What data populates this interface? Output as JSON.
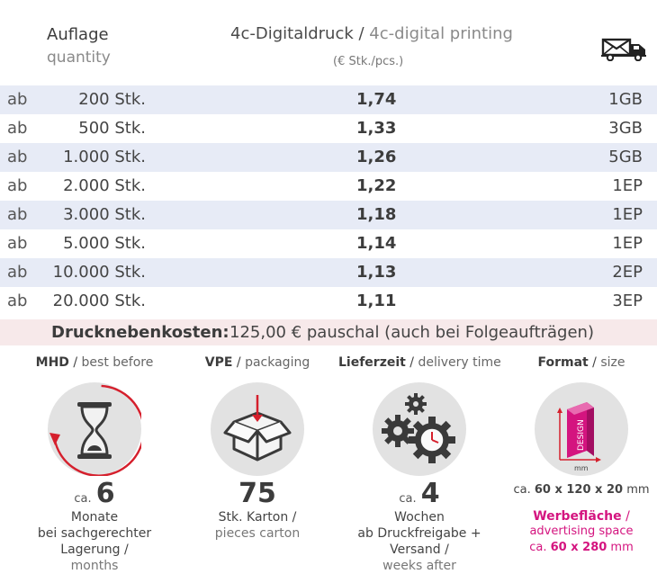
{
  "header": {
    "quantity_de": "Auflage",
    "quantity_en": "quantity",
    "printing_de": "4c-Digitaldruck",
    "printing_sep": " / ",
    "printing_en": "4c-digital printing",
    "unit": "(€ Stk./pcs.)",
    "shipping_icon": "truck-mail-icon"
  },
  "rows": [
    {
      "ab": "ab",
      "qty": "200 Stk.",
      "price": "1,74",
      "ship": "1GB"
    },
    {
      "ab": "ab",
      "qty": "500 Stk.",
      "price": "1,33",
      "ship": "3GB"
    },
    {
      "ab": "ab",
      "qty": "1.000 Stk.",
      "price": "1,26",
      "ship": "5GB"
    },
    {
      "ab": "ab",
      "qty": "2.000 Stk.",
      "price": "1,22",
      "ship": "1EP"
    },
    {
      "ab": "ab",
      "qty": "3.000 Stk.",
      "price": "1,18",
      "ship": "1EP"
    },
    {
      "ab": "ab",
      "qty": "5.000 Stk.",
      "price": "1,14",
      "ship": "1EP"
    },
    {
      "ab": "ab",
      "qty": "10.000 Stk.",
      "price": "1,13",
      "ship": "2EP"
    },
    {
      "ab": "ab",
      "qty": "20.000 Stk.",
      "price": "1,11",
      "ship": "3EP"
    }
  ],
  "costs": {
    "label": "Drucknebenkosten:",
    "value": "125,00 € pauschal (auch bei Folgeaufträgen)"
  },
  "info": {
    "mhd": {
      "title_de": "MHD",
      "sep": " / ",
      "title_en": "best before",
      "ca": "ca.",
      "number": "6",
      "line1": "Monate",
      "line2": "bei sachgerechter Lagerung /",
      "line3": "months",
      "icon": "hourglass-icon"
    },
    "vpe": {
      "title_de": "VPE",
      "sep": " / ",
      "title_en": "packaging",
      "number": "75",
      "line1": "Stk. Karton /",
      "line2": "pieces carton",
      "icon": "box-icon"
    },
    "delivery": {
      "title_de": "Lieferzeit",
      "sep": " / ",
      "title_en": "delivery time",
      "ca": "ca.",
      "number": "4",
      "line1": "Wochen",
      "line2": "ab Druckfreigabe + Versand /",
      "line3": "weeks after",
      "icon": "gears-clock-icon"
    },
    "format": {
      "title_de": "Format",
      "sep": " / ",
      "title_en": "size",
      "icon": "design-box-icon",
      "icon_text": "DESIGN",
      "icon_unit": "mm",
      "size_prefix": "ca.",
      "size_value": "60 x 120 x 20",
      "size_unit": " mm",
      "ad_de": "Werbefläche",
      "ad_sep": " /",
      "ad_en": "advertising space",
      "ad_prefix": "ca.",
      "ad_value": "60 x 280",
      "ad_unit": " mm"
    }
  },
  "colors": {
    "row_shade": "#e7ebf6",
    "costs_bg": "#f7e9ea",
    "accent_red": "#d51f2c",
    "accent_pink": "#d4147f"
  }
}
